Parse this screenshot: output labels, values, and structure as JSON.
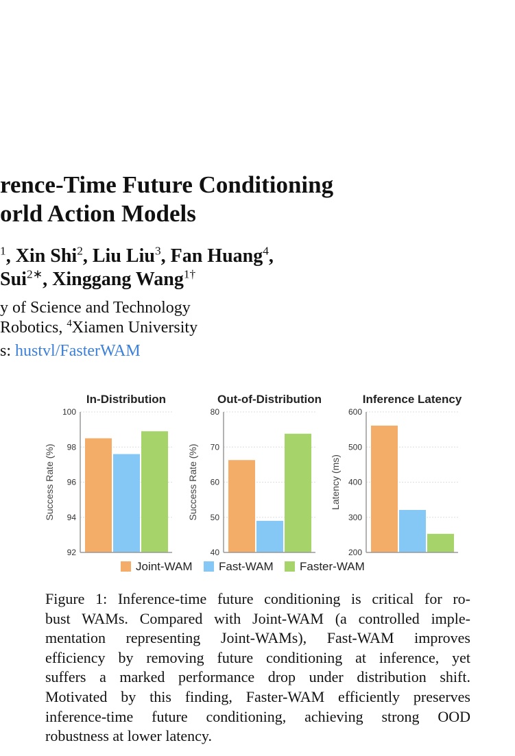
{
  "header": {
    "title_lines": [
      "rence-Time Future Conditioning",
      "orld Action Models"
    ],
    "author_lines": [
      [
        {
          "text": "1",
          "sup": true
        },
        {
          "text": ", Xin Shi"
        },
        {
          "text": "2",
          "sup": true
        },
        {
          "text": ", Liu Liu"
        },
        {
          "text": "3",
          "sup": true
        },
        {
          "text": ", Fan Huang"
        },
        {
          "text": "4",
          "sup": true
        },
        {
          "text": ","
        }
      ],
      [
        {
          "text": "Sui"
        },
        {
          "text": "2∗",
          "sup": true
        },
        {
          "text": ", Xinggang Wang"
        },
        {
          "text": "1†",
          "sup": true
        }
      ]
    ],
    "affiliation_lines": [
      [
        {
          "text": "y of Science and Technology"
        }
      ],
      [
        {
          "text": "Robotics, "
        },
        {
          "text": "4",
          "sup": true
        },
        {
          "text": "Xiamen University"
        }
      ]
    ],
    "code": {
      "prefix": "s: ",
      "link": "hustvl/FasterWAM"
    }
  },
  "legend": [
    {
      "name": "Joint-WAM",
      "color": "#f4ad69"
    },
    {
      "name": "Fast-WAM",
      "color": "#85c8f5"
    },
    {
      "name": "Faster-WAM",
      "color": "#a6d46a"
    }
  ],
  "chart_data": [
    {
      "type": "bar",
      "title": "In-Distribution",
      "ylabel": "Success Rate (%)",
      "values": [
        98.5,
        97.6,
        98.9
      ],
      "ylim": [
        92,
        100
      ],
      "yticks": [
        92,
        94,
        96,
        98,
        100
      ],
      "grid": true
    },
    {
      "type": "bar",
      "title": "Out-of-Distribution",
      "ylabel": "Success Rate (%)",
      "values": [
        66.3,
        49.0,
        73.8
      ],
      "ylim": [
        40,
        80
      ],
      "yticks": [
        40,
        50,
        60,
        70,
        80
      ],
      "grid": true
    },
    {
      "type": "bar",
      "title": "Inference Latency",
      "ylabel": "Latency (ms)",
      "values": [
        561,
        321,
        253
      ],
      "ylim": [
        200,
        600
      ],
      "yticks": [
        200,
        300,
        400,
        500,
        600
      ],
      "grid": true
    }
  ],
  "caption_lines": [
    "Figure 1: Inference-time future conditioning is critical for ro-",
    "bust WAMs. Compared with Joint-WAM (a controlled imple-",
    "mentation representing Joint-WAMs), Fast-WAM improves",
    "efficiency by removing future conditioning at inference, yet",
    "suffers a marked performance drop under distribution shift.",
    "Motivated by this finding, Faster-WAM efficiently preserves",
    "inference-time future conditioning, achieving strong OOD",
    "robustness at lower latency."
  ]
}
